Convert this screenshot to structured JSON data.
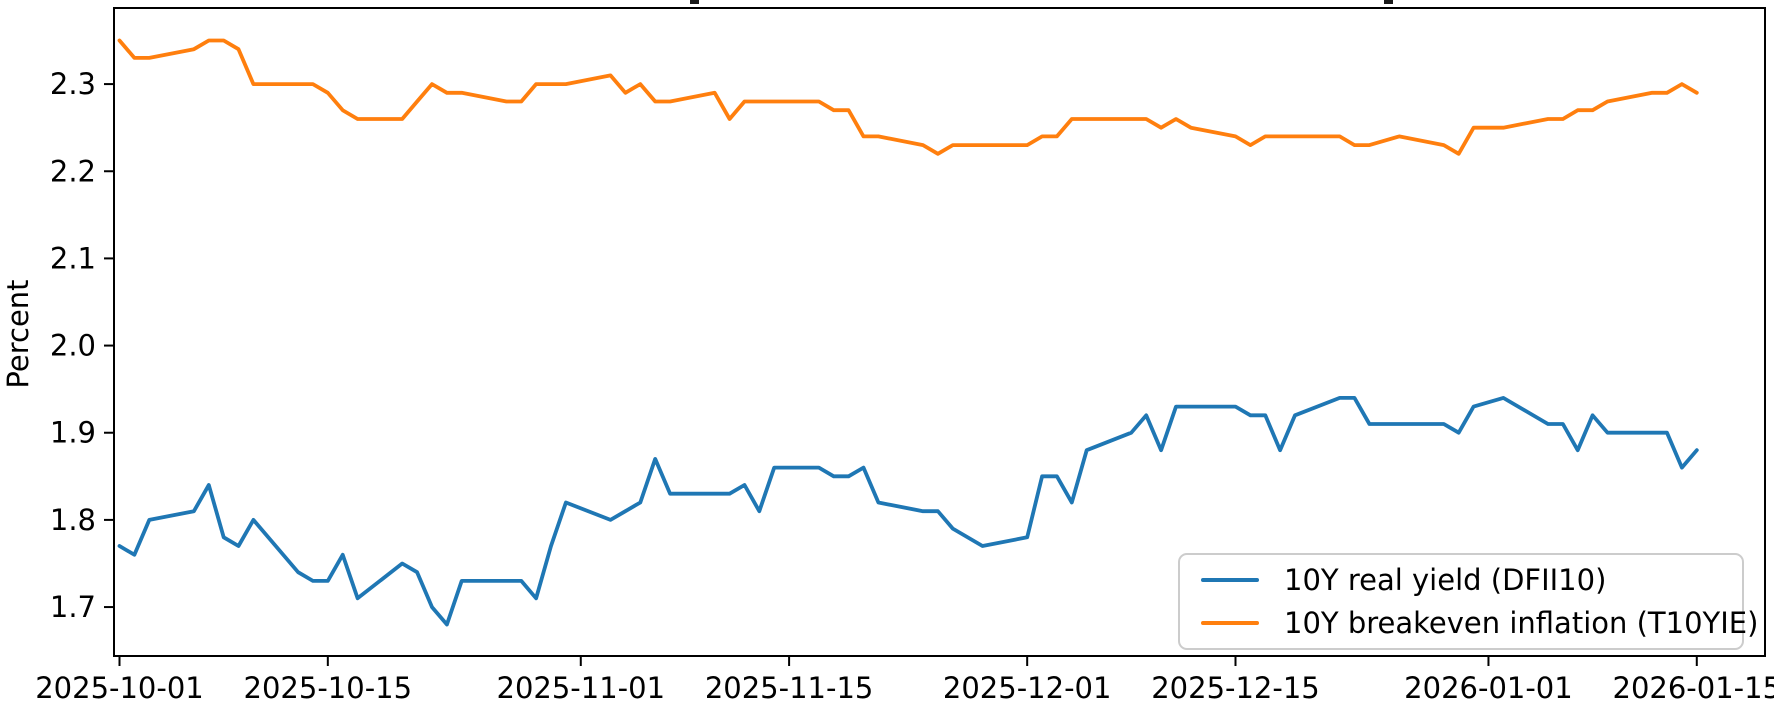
{
  "chart_data": {
    "type": "line",
    "title": "",
    "xlabel": "",
    "ylabel": "Percent",
    "ylim": [
      1.645,
      2.385
    ],
    "grid": false,
    "legend_position": "lower right",
    "y_tick_labels": [
      "1.7",
      "1.8",
      "1.9",
      "2.0",
      "2.1",
      "2.2",
      "2.3"
    ],
    "x_tick_labels": [
      "2025-10-01",
      "2025-10-15",
      "2025-11-01",
      "2025-11-15",
      "2025-12-01",
      "2025-12-15",
      "2026-01-01",
      "2026-01-15"
    ],
    "dates": [
      "2025-10-01",
      "2025-10-02",
      "2025-10-03",
      "2025-10-06",
      "2025-10-07",
      "2025-10-08",
      "2025-10-09",
      "2025-10-10",
      "2025-10-13",
      "2025-10-14",
      "2025-10-15",
      "2025-10-16",
      "2025-10-17",
      "2025-10-20",
      "2025-10-21",
      "2025-10-22",
      "2025-10-23",
      "2025-10-24",
      "2025-10-27",
      "2025-10-28",
      "2025-10-29",
      "2025-10-30",
      "2025-10-31",
      "2025-11-03",
      "2025-11-04",
      "2025-11-05",
      "2025-11-06",
      "2025-11-07",
      "2025-11-10",
      "2025-11-11",
      "2025-11-12",
      "2025-11-13",
      "2025-11-14",
      "2025-11-17",
      "2025-11-18",
      "2025-11-19",
      "2025-11-20",
      "2025-11-21",
      "2025-11-24",
      "2025-11-25",
      "2025-11-26",
      "2025-11-28",
      "2025-12-01",
      "2025-12-02",
      "2025-12-03",
      "2025-12-04",
      "2025-12-05",
      "2025-12-08",
      "2025-12-09",
      "2025-12-10",
      "2025-12-11",
      "2025-12-12",
      "2025-12-15",
      "2025-12-16",
      "2025-12-17",
      "2025-12-18",
      "2025-12-19",
      "2025-12-22",
      "2025-12-23",
      "2025-12-24",
      "2025-12-26",
      "2025-12-29",
      "2025-12-30",
      "2025-12-31",
      "2026-01-02",
      "2026-01-05",
      "2026-01-06",
      "2026-01-07",
      "2026-01-08",
      "2026-01-09",
      "2026-01-12",
      "2026-01-13",
      "2026-01-14",
      "2026-01-15"
    ],
    "series": [
      {
        "name": "10Y real yield (DFII10)",
        "color": "#1f77b4",
        "values": [
          1.77,
          1.76,
          1.8,
          1.81,
          1.84,
          1.78,
          1.77,
          1.8,
          1.74,
          1.73,
          1.73,
          1.76,
          1.71,
          1.75,
          1.74,
          1.7,
          1.68,
          1.73,
          1.73,
          1.73,
          1.71,
          1.77,
          1.82,
          1.8,
          1.81,
          1.82,
          1.87,
          1.83,
          1.83,
          1.83,
          1.84,
          1.81,
          1.86,
          1.86,
          1.85,
          1.85,
          1.86,
          1.82,
          1.81,
          1.81,
          1.79,
          1.77,
          1.78,
          1.85,
          1.85,
          1.82,
          1.88,
          1.9,
          1.92,
          1.88,
          1.93,
          1.93,
          1.93,
          1.92,
          1.92,
          1.88,
          1.92,
          1.94,
          1.94,
          1.91,
          1.91,
          1.91,
          1.9,
          1.93,
          1.94,
          1.91,
          1.91,
          1.88,
          1.92,
          1.9,
          1.9,
          1.9,
          1.86,
          1.88
        ]
      },
      {
        "name": "10Y breakeven inflation (T10YIE)",
        "color": "#ff7f0e",
        "values": [
          2.35,
          2.33,
          2.33,
          2.34,
          2.35,
          2.35,
          2.34,
          2.3,
          2.3,
          2.3,
          2.29,
          2.27,
          2.26,
          2.26,
          2.28,
          2.3,
          2.29,
          2.29,
          2.28,
          2.28,
          2.3,
          2.3,
          2.3,
          2.31,
          2.29,
          2.3,
          2.28,
          2.28,
          2.29,
          2.26,
          2.28,
          2.28,
          2.28,
          2.28,
          2.27,
          2.27,
          2.24,
          2.24,
          2.23,
          2.22,
          2.23,
          2.23,
          2.23,
          2.24,
          2.24,
          2.26,
          2.26,
          2.26,
          2.26,
          2.25,
          2.26,
          2.25,
          2.24,
          2.23,
          2.24,
          2.24,
          2.24,
          2.24,
          2.23,
          2.23,
          2.24,
          2.23,
          2.22,
          2.25,
          2.25,
          2.26,
          2.26,
          2.27,
          2.27,
          2.28,
          2.29,
          2.29,
          2.3,
          2.29
        ]
      }
    ]
  }
}
